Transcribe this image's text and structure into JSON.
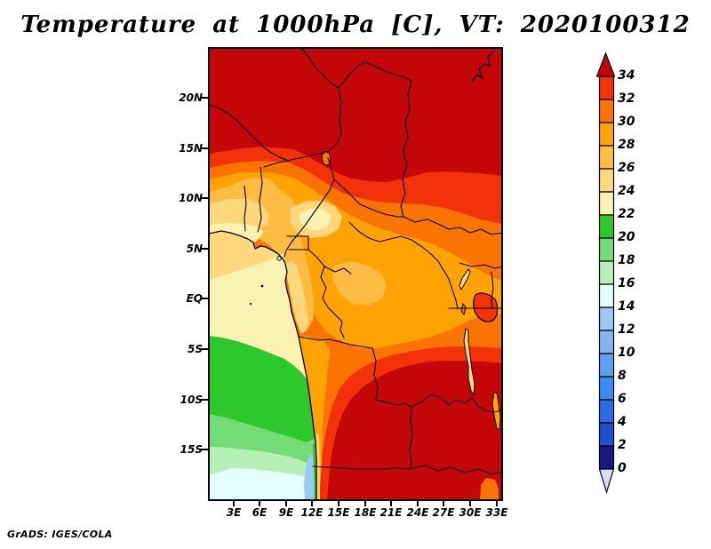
{
  "title": "Temperature at 1000hPa [C], VT: 2020100312",
  "footer": "GrADS: IGES/COLA",
  "map": {
    "y_axis": {
      "labels": [
        "20N",
        "15N",
        "10N",
        "5N",
        "EQ",
        "5S",
        "10S",
        "15S"
      ]
    },
    "x_axis": {
      "labels": [
        "3E",
        "6E",
        "9E",
        "12E",
        "15E",
        "18E",
        "21E",
        "24E",
        "27E",
        "30E",
        "33E"
      ]
    }
  },
  "colorbar": {
    "labels": [
      "34",
      "32",
      "30",
      "28",
      "26",
      "24",
      "22",
      "20",
      "18",
      "16",
      "14",
      "12",
      "10",
      "8",
      "6",
      "4",
      "2",
      "0"
    ],
    "cell_levels_top_to_bottom": [
      "32",
      "30",
      "28",
      "26",
      "24",
      "22",
      "20",
      "18",
      "16",
      "14",
      "12",
      "10",
      "8",
      "6",
      "4",
      "2",
      "0"
    ]
  },
  "palette": {
    "over": "#C40808",
    "32": "#F23208",
    "30": "#FA7404",
    "28": "#FFA204",
    "26": "#FFBC42",
    "24": "#FFD87E",
    "22": "#FAF2B0",
    "20": "#2CC82C",
    "18": "#74DC74",
    "16": "#B6F0B6",
    "14": "#E2FEFE",
    "12": "#9CC8F6",
    "10": "#84B4F2",
    "8": "#5CA0F2",
    "6": "#3C8CF0",
    "4": "#2A6CE4",
    "2": "#1E50D0",
    "0": "#181880",
    "under": "#DCDCF8"
  },
  "chart_data": {
    "type": "heatmap",
    "title": "Temperature at 1000hPa [C], VT: 2020100312",
    "variable": "Temperature",
    "units": "C",
    "pressure_level": "1000hPa",
    "valid_time": "2020100312",
    "x_tick_labels": [
      "3E",
      "6E",
      "9E",
      "12E",
      "15E",
      "18E",
      "21E",
      "24E",
      "27E",
      "30E",
      "33E"
    ],
    "y_tick_labels": [
      "20N",
      "15N",
      "10N",
      "5N",
      "EQ",
      "5S",
      "10S",
      "15S"
    ],
    "contour_interval": 2,
    "color_scale_min": 0,
    "color_scale_max": 34,
    "legend_position": "right",
    "credit": "GrADS: IGES/COLA"
  }
}
